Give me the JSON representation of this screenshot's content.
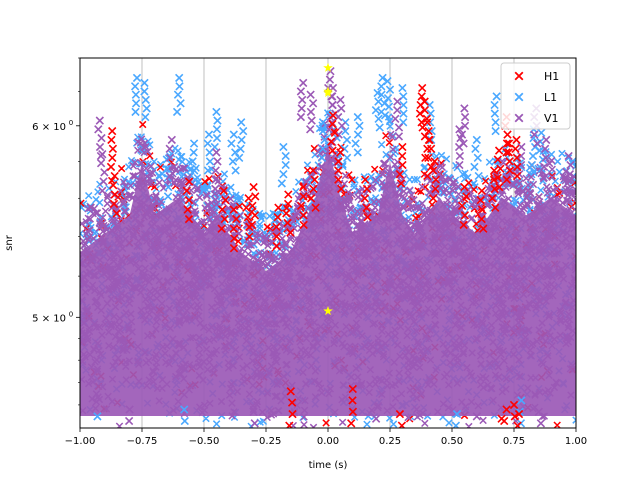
{
  "chart_data": {
    "type": "scatter",
    "title": "",
    "xlabel": "time (s)",
    "ylabel": "snr",
    "xlim": [
      -1.0,
      1.0
    ],
    "ylim": [
      4.5,
      6.4
    ],
    "yscale": "log",
    "grid": "vertical-only",
    "legend_position": "top-right",
    "x_ticks": [
      -1.0,
      -0.75,
      -0.5,
      -0.25,
      0.0,
      0.25,
      0.5,
      0.75,
      1.0
    ],
    "x_tick_labels": [
      "−1.00",
      "−0.75",
      "−0.50",
      "−0.25",
      "0.00",
      "0.25",
      "0.50",
      "0.75",
      "1.00"
    ],
    "y_ticks": [
      5.0,
      6.0
    ],
    "y_tick_labels": [
      {
        "base": "5 × 10",
        "exp": "0"
      },
      {
        "base": "6 × 10",
        "exp": "0"
      }
    ],
    "series": [
      {
        "name": "H1",
        "color": "#ff0000",
        "marker": "x"
      },
      {
        "name": "L1",
        "color": "#4aa8ff",
        "marker": "x"
      },
      {
        "name": "V1",
        "color": "#9b59b6",
        "marker": "x"
      }
    ],
    "dense_region": {
      "description_values": "all three detectors fill the band from snr 4.5 to ~5.6 across the full time range",
      "upper_envelope": [
        [
          -1.0,
          5.6
        ],
        [
          -0.9,
          5.7
        ],
        [
          -0.8,
          5.8
        ],
        [
          -0.75,
          6.1
        ],
        [
          -0.7,
          5.8
        ],
        [
          -0.6,
          5.9
        ],
        [
          -0.5,
          5.7
        ],
        [
          -0.45,
          5.8
        ],
        [
          -0.35,
          5.6
        ],
        [
          -0.25,
          5.5
        ],
        [
          -0.15,
          5.6
        ],
        [
          -0.05,
          5.9
        ],
        [
          0.0,
          6.2
        ],
        [
          0.05,
          5.9
        ],
        [
          0.1,
          5.7
        ],
        [
          0.2,
          5.8
        ],
        [
          0.25,
          6.1
        ],
        [
          0.3,
          5.8
        ],
        [
          0.35,
          5.7
        ],
        [
          0.45,
          5.9
        ],
        [
          0.5,
          5.8
        ],
        [
          0.6,
          5.7
        ],
        [
          0.7,
          5.9
        ],
        [
          0.8,
          5.8
        ],
        [
          0.9,
          5.9
        ],
        [
          1.0,
          5.8
        ]
      ]
    },
    "outliers": {
      "H1": [
        [
          -0.87,
          5.97
        ],
        [
          -0.86,
          5.72
        ],
        [
          -0.56,
          5.69
        ],
        [
          -0.42,
          5.64
        ],
        [
          -0.38,
          5.54
        ],
        [
          -0.32,
          5.6
        ],
        [
          -0.3,
          5.66
        ],
        [
          -0.2,
          5.55
        ],
        [
          -0.16,
          5.62
        ],
        [
          -0.1,
          5.66
        ],
        [
          -0.06,
          5.75
        ],
        [
          0.02,
          6.06
        ],
        [
          0.05,
          5.85
        ],
        [
          0.15,
          5.7
        ],
        [
          0.3,
          5.88
        ],
        [
          0.38,
          6.22
        ],
        [
          0.39,
          6.14
        ],
        [
          0.4,
          6.02
        ],
        [
          0.41,
          5.92
        ],
        [
          0.43,
          5.8
        ],
        [
          0.55,
          5.66
        ],
        [
          0.62,
          5.64
        ],
        [
          0.67,
          5.75
        ],
        [
          0.69,
          5.86
        ],
        [
          0.72,
          6.05
        ],
        [
          0.73,
          5.9
        ],
        [
          0.76,
          5.92
        ],
        [
          0.7,
          4.54
        ],
        [
          0.72,
          4.58
        ],
        [
          0.75,
          4.6
        ],
        [
          0.77,
          4.56
        ],
        [
          -0.15,
          4.66
        ],
        [
          0.1,
          4.67
        ],
        [
          0.29,
          4.56
        ]
      ],
      "L1": [
        [
          -0.77,
          6.28
        ],
        [
          -0.74,
          6.25
        ],
        [
          -0.6,
          6.28
        ],
        [
          -0.54,
          5.9
        ],
        [
          -0.48,
          5.95
        ],
        [
          -0.45,
          6.08
        ],
        [
          -0.38,
          5.95
        ],
        [
          -0.35,
          6.02
        ],
        [
          -0.18,
          5.88
        ],
        [
          0.07,
          6.02
        ],
        [
          0.12,
          6.05
        ],
        [
          0.2,
          6.19
        ],
        [
          0.22,
          6.28
        ],
        [
          0.24,
          6.26
        ],
        [
          0.3,
          6.22
        ],
        [
          0.41,
          6.12
        ],
        [
          0.6,
          5.92
        ],
        [
          0.68,
          6.17
        ],
        [
          0.83,
          5.98
        ],
        [
          0.86,
          5.96
        ],
        [
          -0.65,
          5.81
        ],
        [
          -0.02,
          6.02
        ],
        [
          -0.93,
          4.55
        ],
        [
          -0.58,
          4.58
        ],
        [
          0.52,
          4.56
        ],
        [
          0.78,
          4.62
        ]
      ],
      "V1": [
        [
          -0.92,
          6.03
        ],
        [
          -0.91,
          5.84
        ],
        [
          -0.63,
          5.92
        ],
        [
          -0.45,
          5.85
        ],
        [
          -0.1,
          6.25
        ],
        [
          -0.07,
          6.18
        ],
        [
          0.01,
          6.32
        ],
        [
          0.02,
          6.22
        ],
        [
          0.05,
          6.15
        ],
        [
          0.28,
          6.14
        ],
        [
          0.55,
          6.1
        ],
        [
          0.53,
          5.98
        ],
        [
          0.78,
          5.88
        ],
        [
          0.84,
          6.1
        ],
        [
          0.88,
          5.92
        ],
        [
          0.97,
          5.83
        ],
        [
          -0.8,
          4.58
        ],
        [
          -0.3,
          4.57
        ],
        [
          0.2,
          4.59
        ],
        [
          0.6,
          4.55
        ],
        [
          0.85,
          4.57
        ]
      ]
    },
    "highlight_points": {
      "color": "#ffff00",
      "marker": "star",
      "values": [
        [
          0.0,
          6.34
        ],
        [
          0.0,
          6.19
        ],
        [
          0.0,
          6.2
        ],
        [
          0.0,
          5.03
        ]
      ]
    }
  }
}
